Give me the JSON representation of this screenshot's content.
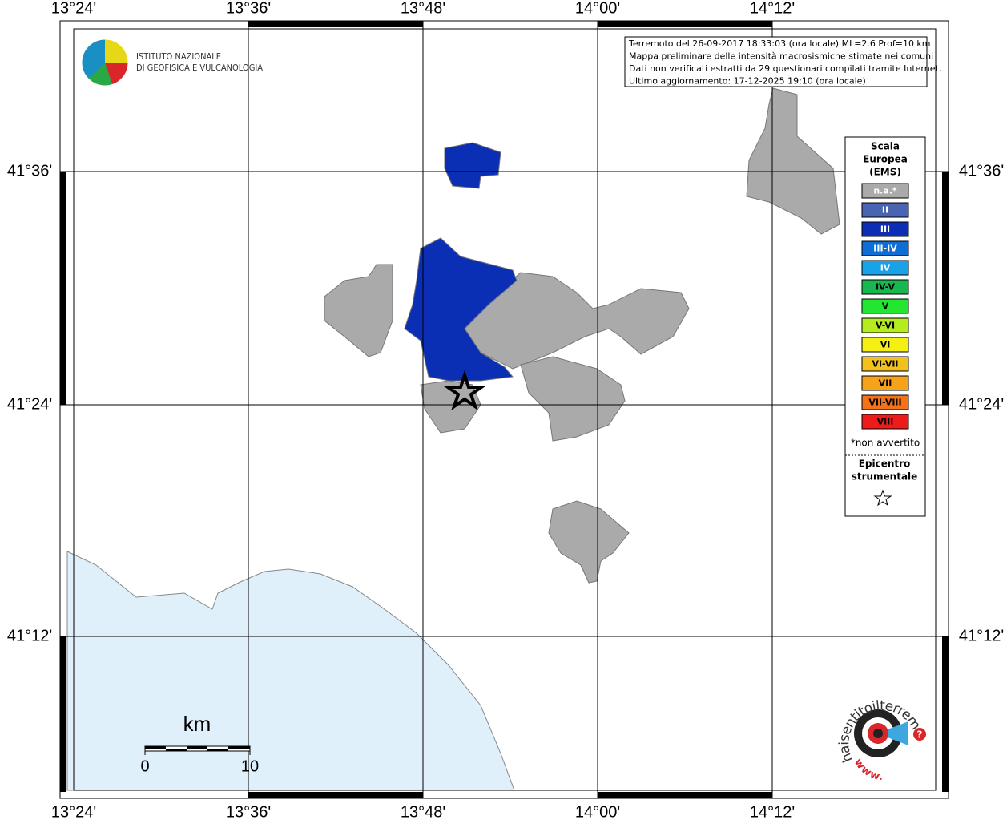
{
  "map": {
    "lon_labels": [
      "13°24'",
      "13°36'",
      "13°48'",
      "14°00'",
      "14°12'"
    ],
    "lat_labels": [
      "41°36'",
      "41°24'",
      "41°12'"
    ],
    "info": [
      "Terremoto del 26-09-2017 18:33:03 (ora locale) ML=2.6 Prof=10 km",
      "Mappa preliminare delle intensità macrosismiche stimate nei comuni",
      "Dati non verificati estratti da 29 questionari compilati tramite Internet.",
      "Ultimo aggiornamento: 17-12-2025 19:10 (ora locale)"
    ],
    "logo": [
      "ISTITUTO NAZIONALE",
      "DI GEOFISICA E VULCANOLOGIA"
    ],
    "legend": {
      "title": [
        "Scala",
        "Europea",
        "(EMS)"
      ],
      "classes": [
        {
          "label": "n.a.*",
          "color": "#aaaaaa",
          "text_color": "#ffffff"
        },
        {
          "label": "II",
          "color": "#4a64b4",
          "text_color": "#ffffff"
        },
        {
          "label": "III",
          "color": "#0a2eb4",
          "text_color": "#ffffff"
        },
        {
          "label": "III-IV",
          "color": "#0f6ed6",
          "text_color": "#ffffff"
        },
        {
          "label": "IV",
          "color": "#18a2e8",
          "text_color": "#ffffff"
        },
        {
          "label": "IV-V",
          "color": "#17b84f",
          "text_color": "#000000"
        },
        {
          "label": "V",
          "color": "#22e62f",
          "text_color": "#000000"
        },
        {
          "label": "V-VI",
          "color": "#b4ec1e",
          "text_color": "#000000"
        },
        {
          "label": "VI",
          "color": "#f5f014",
          "text_color": "#000000"
        },
        {
          "label": "VI-VII",
          "color": "#f2c11c",
          "text_color": "#000000"
        },
        {
          "label": "VII",
          "color": "#f6a21b",
          "text_color": "#000000"
        },
        {
          "label": "VII-VIII",
          "color": "#f3721a",
          "text_color": "#000000"
        },
        {
          "label": "VIII",
          "color": "#ee1b1b",
          "text_color": "#000000"
        }
      ],
      "footnote": "*non avvertito",
      "epicentre": [
        "Epicentro",
        "strumentale"
      ]
    },
    "scale_bar": {
      "unit": "km",
      "labels": [
        "0",
        "10"
      ]
    },
    "site_logo": {
      "text": "haisentitoilterremoto.it",
      "www": "www.",
      "question": "?"
    }
  }
}
